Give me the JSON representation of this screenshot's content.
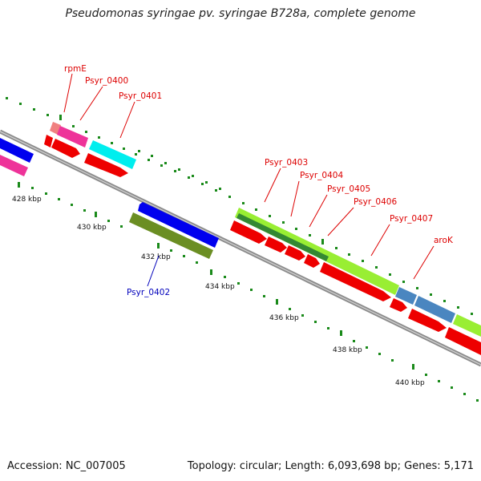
{
  "title": "Pseudomonas syringae pv. syringae B728a, complete genome",
  "footer": {
    "accession": "Accession: NC_007005",
    "summary": "Topology: circular; Length: 6,093,698 bp; Genes: 5,171"
  },
  "scale_labels": [
    "428 kbp",
    "430 kbp",
    "432 kbp",
    "434 kbp",
    "436 kbp",
    "438 kbp",
    "440 kbp"
  ],
  "gene_labels": {
    "rpmE": "rpmE",
    "psyr0400": "Psyr_0400",
    "psyr0401": "Psyr_0401",
    "psyr0402": "Psyr_0402",
    "psyr0403": "Psyr_0403",
    "psyr0404": "Psyr_0404",
    "psyr0405": "Psyr_0405",
    "psyr0406": "Psyr_0406",
    "psyr0407": "Psyr_0407",
    "aroK": "aroK"
  },
  "colors": {
    "backbone": "#8c8c8c",
    "cds": "#ee0000",
    "forward_label": "#dd0000",
    "reverse_label": "#0000bb",
    "tick": "#1a8a1a",
    "magenta": "#ee3399",
    "cyan": "#00eeee",
    "blue": "#0000ee",
    "olive": "#6b8e23",
    "lime": "#99ee33",
    "darkgreen": "#338833",
    "steelblue": "#4a86c0",
    "salmon": "#f08080"
  }
}
